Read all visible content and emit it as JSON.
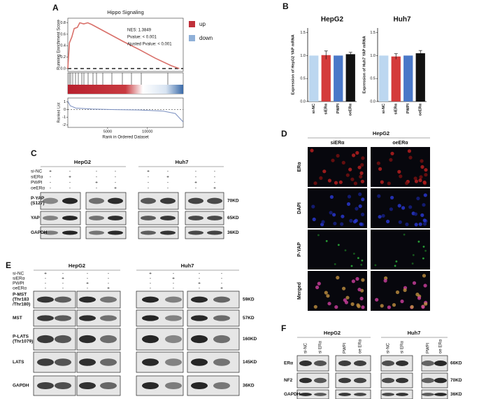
{
  "panel_labels": [
    "A",
    "B",
    "C",
    "D",
    "E",
    "F"
  ],
  "chart_data": [
    {
      "type": "gsea",
      "title": "Hippo Signaling",
      "ylabel": "Running Enrichment Score",
      "xlabel": "Rank in Ordered Dataset",
      "annotations": [
        "NES: 1.3849",
        "Pvalue: < 0.001",
        "Ajusted Pvalue: < 0.001"
      ],
      "legend": [
        {
          "name": "up",
          "color": "#c0303a"
        },
        {
          "name": "down",
          "color": "#8fb0d8"
        }
      ],
      "x": [
        0,
        200,
        500,
        800,
        1200,
        1500,
        2000,
        2500,
        3000,
        5000,
        7000,
        9000,
        11000,
        13000,
        14000
      ],
      "values": [
        0,
        0.45,
        0.55,
        0.7,
        0.72,
        0.8,
        0.78,
        0.8,
        0.77,
        0.62,
        0.47,
        0.33,
        0.18,
        0.05,
        0
      ],
      "color": "#d9706a",
      "xlim": [
        0,
        14500
      ],
      "xticks": [
        5000,
        10000
      ],
      "ylim": [
        -0.05,
        0.88
      ],
      "yticks": [
        {
          "value": 0,
          "label": "0.0"
        },
        0.2,
        0.4,
        0.6,
        0.8
      ],
      "ranked_ylabel": "Ranked List",
      "ranked_x": [
        0,
        300,
        1000,
        3000,
        6000,
        9000,
        12000,
        13500,
        14500
      ],
      "ranked_values": [
        1.1,
        0.5,
        0.2,
        0.08,
        0,
        -0.05,
        -0.2,
        -0.5,
        -1.6
      ],
      "ranked_ylim": [
        -2.3,
        1.5
      ],
      "ranked_yticks": [
        -2,
        -1,
        0,
        1
      ]
    },
    {
      "type": "bar",
      "title": "HepG2",
      "ylabel": "Expression of HepG2 YAP mRNA",
      "categories": [
        "si-NC",
        "siERα",
        "PWPI",
        "oeERα"
      ],
      "values": [
        1,
        1.01,
        1,
        1.03
      ],
      "errors": [
        0,
        0.09,
        0,
        0.04
      ],
      "colors": [
        "#bcd7f0",
        "#d43b3b",
        "#4a78c8",
        "#111111"
      ],
      "ylim": [
        0,
        1.6
      ],
      "yticks": [
        {
          "value": 0,
          "label": "0.0"
        },
        0.5,
        {
          "value": 1,
          "label": "1.0"
        },
        1.5
      ]
    },
    {
      "type": "bar",
      "title": "Huh7",
      "ylabel": "Expression of Huh7 YAP mRNA",
      "categories": [
        "si-NC",
        "siERα",
        "PWPI",
        "oeERα"
      ],
      "values": [
        1,
        0.98,
        1,
        1.05
      ],
      "errors": [
        0,
        0.06,
        0,
        0.06
      ],
      "colors": [
        "#bcd7f0",
        "#d43b3b",
        "#4a78c8",
        "#111111"
      ],
      "ylim": [
        0,
        1.6
      ],
      "yticks": [
        {
          "value": 0,
          "label": "0.0"
        },
        0.5,
        {
          "value": 1,
          "label": "1.0"
        },
        1.5
      ]
    }
  ],
  "panel_c": {
    "cell_lines": [
      "HepG2",
      "Huh7"
    ],
    "conditions": [
      "si-NC",
      "siERα",
      "PWPI",
      "oeERα"
    ],
    "signs": [
      [
        "+",
        "-",
        "-",
        "-",
        "+",
        "-",
        "-",
        "-"
      ],
      [
        "-",
        "+",
        "-",
        "-",
        "-",
        "+",
        "-",
        "-"
      ],
      [
        "-",
        "-",
        "+",
        "-",
        "-",
        "-",
        "+",
        "-"
      ],
      [
        "-",
        "-",
        "-",
        "+",
        "-",
        "-",
        "-",
        "+"
      ]
    ],
    "proteins": [
      [
        "P-YAP",
        "(S127)"
      ],
      [
        "YAP"
      ],
      [
        "GAPDH"
      ]
    ],
    "sizes": [
      "70KD",
      "65KD",
      "36KD"
    ]
  },
  "panel_d": {
    "cell_line": "HepG2",
    "columns": [
      "siERα",
      "oeERα"
    ],
    "rows": [
      "ERα",
      "DAPI",
      "P-YAP",
      "Merged"
    ]
  },
  "panel_e": {
    "cell_lines": [
      "HepG2",
      "Huh7"
    ],
    "conditions": [
      "si-NC",
      "siERα",
      "PWPI",
      "oeERα"
    ],
    "signs": [
      [
        "+",
        "-",
        "-",
        "-",
        "+",
        "-",
        "-",
        "-"
      ],
      [
        "-",
        "+",
        "-",
        "-",
        "-",
        "+",
        "-",
        "-"
      ],
      [
        "-",
        "-",
        "+",
        "-",
        "-",
        "-",
        "+",
        "-"
      ],
      [
        "-",
        "-",
        "-",
        "+",
        "-",
        "-",
        "-",
        "+"
      ]
    ],
    "proteins": [
      [
        "P-MST",
        "(Thr183",
        "/Thr180)"
      ],
      [
        "MST"
      ],
      [
        "P-LATS",
        "(Thr1079)"
      ],
      [
        "LATS"
      ],
      [
        "GAPDH"
      ]
    ],
    "sizes": [
      "59KD",
      "57KD",
      "160KD",
      "145KD",
      "36KD"
    ]
  },
  "panel_f": {
    "cell_lines": [
      "HepG2",
      "Huh7"
    ],
    "lanes": [
      "si-NC",
      "si ERα",
      "PWPI",
      "oe ERα",
      "si-NC",
      "si ERα",
      "PWPI",
      "oe ERα"
    ],
    "proteins": [
      [
        "ERα"
      ],
      [
        "NF2"
      ],
      [
        "GAPDH"
      ]
    ],
    "sizes": [
      "66KD",
      "70KD",
      "36KD"
    ]
  }
}
